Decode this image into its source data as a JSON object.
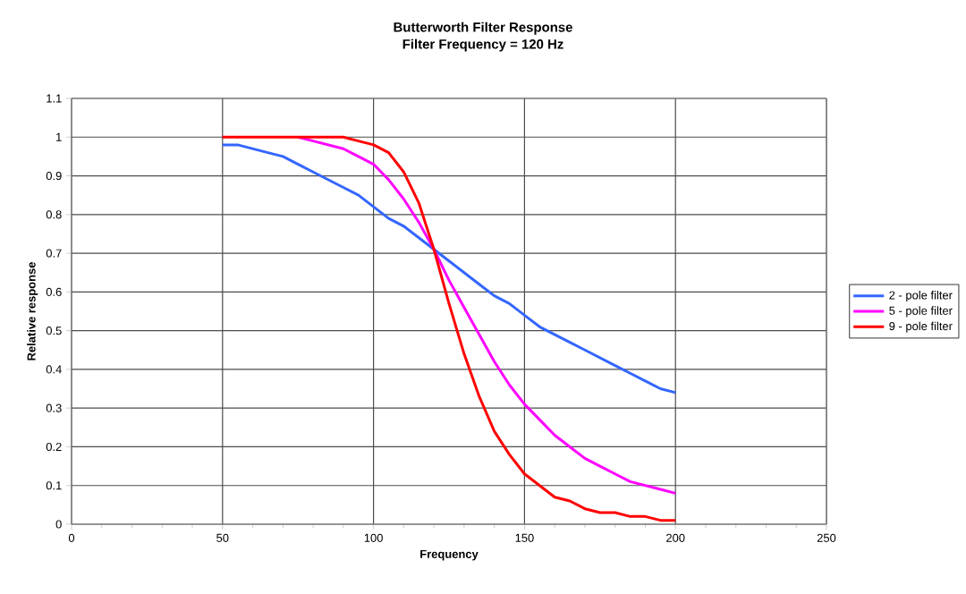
{
  "chart_data": {
    "type": "line",
    "title": "Butterworth Filter Response",
    "subtitle": "Filter Frequency = 120 Hz",
    "xlabel": "Frequency",
    "ylabel": "Relative response",
    "x": [
      50,
      55,
      60,
      65,
      70,
      75,
      80,
      85,
      90,
      95,
      100,
      105,
      110,
      115,
      120,
      125,
      130,
      135,
      140,
      145,
      150,
      155,
      160,
      165,
      170,
      175,
      180,
      185,
      190,
      195,
      200
    ],
    "series": [
      {
        "name": "2 - pole filter",
        "color": "#3366ff",
        "values": [
          0.98,
          0.98,
          0.97,
          0.96,
          0.95,
          0.93,
          0.91,
          0.89,
          0.87,
          0.85,
          0.82,
          0.79,
          0.77,
          0.74,
          0.71,
          0.68,
          0.65,
          0.62,
          0.59,
          0.57,
          0.54,
          0.51,
          0.49,
          0.47,
          0.45,
          0.43,
          0.41,
          0.39,
          0.37,
          0.35,
          0.34
        ]
      },
      {
        "name": "5 - pole filter",
        "color": "#ff00ff",
        "values": [
          null,
          null,
          null,
          null,
          null,
          1.0,
          0.99,
          0.98,
          0.97,
          0.95,
          0.93,
          0.89,
          0.84,
          0.78,
          0.71,
          0.63,
          0.56,
          0.49,
          0.42,
          0.36,
          0.31,
          0.27,
          0.23,
          0.2,
          0.17,
          0.15,
          0.13,
          0.11,
          0.1,
          0.09,
          0.08
        ]
      },
      {
        "name": "9 - pole filter",
        "color": "#ff0000",
        "values": [
          1.0,
          1.0,
          1.0,
          1.0,
          1.0,
          1.0,
          1.0,
          1.0,
          1.0,
          0.99,
          0.98,
          0.96,
          0.91,
          0.83,
          0.71,
          0.57,
          0.44,
          0.33,
          0.24,
          0.18,
          0.13,
          0.1,
          0.07,
          0.06,
          0.04,
          0.03,
          0.03,
          0.02,
          0.02,
          0.01,
          0.01
        ]
      }
    ],
    "xlim": [
      0,
      250
    ],
    "xticks": [
      0,
      50,
      100,
      150,
      200,
      250
    ],
    "ylim": [
      0,
      1.1
    ],
    "yticks": [
      0,
      0.1,
      0.2,
      0.3,
      0.4,
      0.5,
      0.6,
      0.7,
      0.8,
      0.9,
      1,
      1.1
    ],
    "grid": true,
    "legend": "right",
    "marker": "none",
    "line_style": "solid"
  }
}
